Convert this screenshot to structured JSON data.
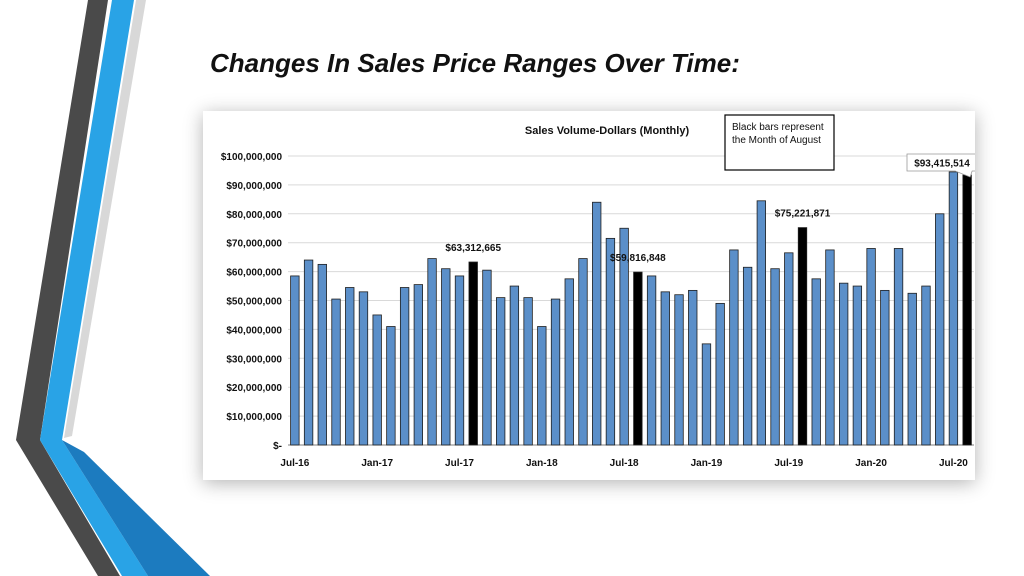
{
  "slide": {
    "title": "Changes In Sales Price Ranges Over Time:"
  },
  "colors": {
    "bar": "#5b8fc9",
    "highlight_bar": "#000000",
    "bar_outline": "#1f1f1f",
    "stripe_dark": "#4a4a4a",
    "stripe_blue": "#29a3e6",
    "stripe_blue_dark": "#1c7bbf"
  },
  "chart_data": {
    "type": "bar",
    "title": "Sales Volume-Dollars  (Monthly)",
    "note": "Black bars represent the Month of August",
    "note_lines": [
      "Black bars represent",
      "the Month of August"
    ],
    "x_tick_labels": [
      "Jul-16",
      "Jan-17",
      "Jul-17",
      "Jan-18",
      "Jul-18",
      "Jan-19",
      "Jul-19",
      "Jan-20",
      "Jul-20"
    ],
    "y_tick_labels": [
      "$-",
      "$10,000,000",
      "$20,000,000",
      "$30,000,000",
      "$40,000,000",
      "$50,000,000",
      "$60,000,000",
      "$70,000,000",
      "$80,000,000",
      "$90,000,000",
      "$100,000,000"
    ],
    "ylim": [
      0,
      100000000
    ],
    "grid": true,
    "highlight_indices": [
      13,
      25,
      37,
      49
    ],
    "values": [
      58500000,
      64000000,
      62500000,
      50500000,
      54500000,
      53000000,
      45000000,
      41000000,
      54500000,
      55500000,
      64500000,
      61000000,
      58500000,
      63312665,
      60500000,
      51000000,
      55000000,
      51000000,
      41000000,
      50500000,
      57500000,
      64500000,
      84000000,
      71500000,
      75000000,
      59816848,
      58500000,
      53000000,
      52000000,
      53500000,
      35000000,
      49000000,
      67500000,
      61500000,
      84500000,
      61000000,
      66500000,
      75221871,
      57500000,
      67500000,
      56000000,
      55000000,
      68000000,
      53500000,
      68000000,
      52500000,
      55000000,
      80000000,
      94500000,
      93415514
    ],
    "data_labels": [
      {
        "index": 13,
        "text": "$63,312,665"
      },
      {
        "index": 25,
        "text": "$59,816,848"
      },
      {
        "index": 37,
        "text": "$75,221,871"
      },
      {
        "index": 49,
        "text": "$93,415,514"
      }
    ]
  }
}
